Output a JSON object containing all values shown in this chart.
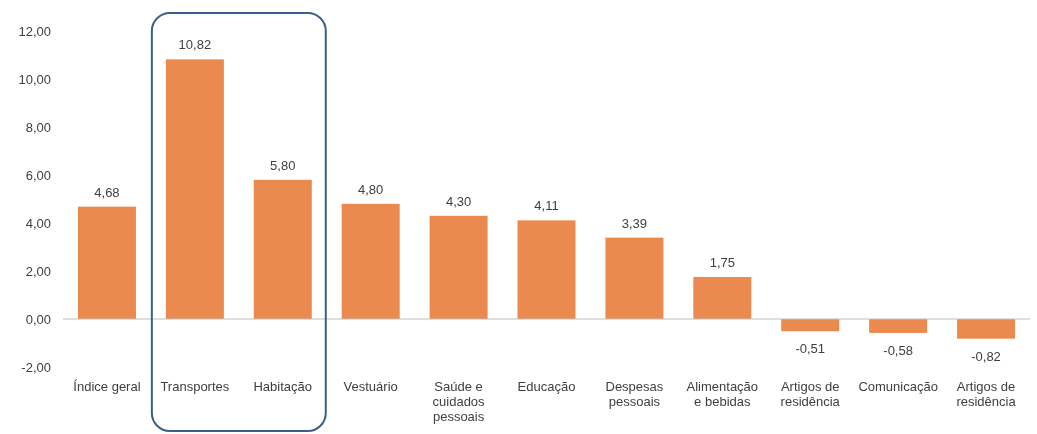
{
  "chart_data": {
    "type": "bar",
    "categories": [
      "Índice geral",
      "Transportes",
      "Habitação",
      "Vestuário",
      "Saúde e cuidados pessoais",
      "Educação",
      "Despesas pessoais",
      "Alimentação e bebidas",
      "Artigos de residência",
      "Comunicação",
      "Artigos de residência"
    ],
    "values": [
      4.68,
      10.82,
      5.8,
      4.8,
      4.3,
      4.11,
      3.39,
      1.75,
      -0.51,
      -0.58,
      -0.82
    ],
    "color": "#eb8a4f",
    "ylim": [
      -2,
      12
    ],
    "yticks": [
      {
        "value": -2,
        "label": "-2,00"
      },
      {
        "value": 0,
        "label": "0,00"
      },
      {
        "value": 2,
        "label": "2,00"
      },
      {
        "value": 4,
        "label": "4,00"
      },
      {
        "value": 6,
        "label": "6,00"
      },
      {
        "value": 8,
        "label": "8,00"
      },
      {
        "value": 10,
        "label": "10,00"
      },
      {
        "value": 12,
        "label": "12,00"
      }
    ],
    "value_labels": [
      "4,68",
      "10,82",
      "5,80",
      "4,80",
      "4,30",
      "4,11",
      "3,39",
      "1,75",
      "-0,51",
      "-0,58",
      "-0,82"
    ]
  }
}
